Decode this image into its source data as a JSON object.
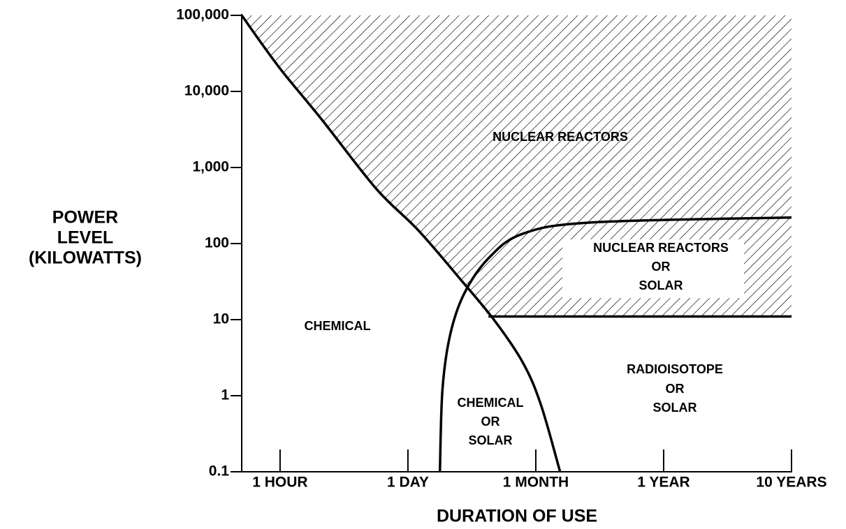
{
  "chart_data": {
    "type": "region",
    "x_label": "DURATION OF USE",
    "y_label": [
      "POWER",
      "LEVEL",
      "(KILOWATTS)"
    ],
    "log_y": true,
    "xlim": [
      -0.3,
      4
    ],
    "xticks": [
      {
        "value": 0,
        "label": "1 HOUR"
      },
      {
        "value": 1,
        "label": "1 DAY"
      },
      {
        "value": 2,
        "label": "1 MONTH"
      },
      {
        "value": 3,
        "label": "1 YEAR"
      },
      {
        "value": 4,
        "label": "10 YEARS"
      }
    ],
    "ylim": [
      0.1,
      100000
    ],
    "yticks": [
      0.1,
      1,
      10,
      100,
      {
        "value": 1000,
        "label": "1,000"
      },
      {
        "value": 10000,
        "label": "10,000"
      },
      {
        "value": 100000,
        "label": "100,000"
      }
    ],
    "hatched": true,
    "series": [
      {
        "color": "#000000",
        "x": [
          -0.3,
          -0.01,
          0.32,
          0.75,
          1.08,
          1.41,
          1.68,
          1.9,
          2.04,
          2.19
        ],
        "values": [
          100000,
          21000,
          4400,
          530,
          150,
          34,
          9.6,
          2.7,
          0.76,
          0.1
        ]
      },
      {
        "color": "#000000",
        "x": [
          1.25,
          1.27,
          1.33,
          1.44,
          1.63,
          1.9,
          2.45,
          4
        ],
        "values": [
          0.1,
          1.2,
          6.3,
          22,
          64,
          135,
          190,
          220
        ]
      },
      {
        "color": "#000000",
        "x": [
          1.63,
          4
        ],
        "values": [
          11,
          11
        ]
      }
    ],
    "annotations": [
      {
        "lines": [
          "NUCLEAR REACTORS"
        ]
      },
      {
        "lines": [
          "NUCLEAR REACTORS",
          "OR",
          "SOLAR"
        ]
      },
      {
        "lines": [
          "CHEMICAL"
        ]
      },
      {
        "lines": [
          "RADIOISOTOPE",
          "OR",
          "SOLAR"
        ]
      },
      {
        "lines": [
          "CHEMICAL",
          "OR",
          "SOLAR"
        ]
      }
    ]
  }
}
